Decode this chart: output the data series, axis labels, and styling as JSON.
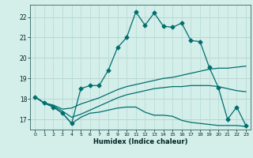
{
  "xlabel": "Humidex (Indice chaleur)",
  "bg_color": "#d4eeea",
  "grid_color_major": "#f0a0a0",
  "grid_color_minor": "#b8ddd8",
  "line_color": "#006e6e",
  "xlim": [
    -0.5,
    23.5
  ],
  "ylim": [
    16.5,
    22.6
  ],
  "yticks": [
    17,
    18,
    19,
    20,
    21,
    22
  ],
  "xticks": [
    0,
    1,
    2,
    3,
    4,
    5,
    6,
    7,
    8,
    9,
    10,
    11,
    12,
    13,
    14,
    15,
    16,
    17,
    18,
    19,
    20,
    21,
    22,
    23
  ],
  "series1_x": [
    0,
    1,
    2,
    3,
    4,
    5,
    6,
    7,
    8,
    9,
    10,
    11,
    12,
    13,
    14,
    15,
    16,
    17,
    18,
    19,
    20,
    21,
    22,
    23
  ],
  "series1_y": [
    18.1,
    17.8,
    17.6,
    17.3,
    16.8,
    18.5,
    18.65,
    18.65,
    19.4,
    20.5,
    21.0,
    22.25,
    21.6,
    22.2,
    21.55,
    21.5,
    21.7,
    20.85,
    20.8,
    19.55,
    18.55,
    17.0,
    17.6,
    16.7
  ],
  "series2_x": [
    0,
    1,
    2,
    3,
    4,
    5,
    6,
    7,
    8,
    9,
    10,
    11,
    12,
    13,
    14,
    15,
    16,
    17,
    18,
    19,
    20,
    21,
    22,
    23
  ],
  "series2_y": [
    18.1,
    17.8,
    17.6,
    17.3,
    16.8,
    17.1,
    17.3,
    17.35,
    17.45,
    17.55,
    17.6,
    17.6,
    17.35,
    17.2,
    17.2,
    17.15,
    16.95,
    16.85,
    16.8,
    16.75,
    16.7,
    16.7,
    16.7,
    16.65
  ],
  "series3_x": [
    0,
    1,
    2,
    3,
    4,
    5,
    6,
    7,
    8,
    9,
    10,
    11,
    12,
    13,
    14,
    15,
    16,
    17,
    18,
    19,
    20,
    21,
    22,
    23
  ],
  "series3_y": [
    18.1,
    17.8,
    17.7,
    17.5,
    17.55,
    17.75,
    17.9,
    18.05,
    18.25,
    18.45,
    18.6,
    18.7,
    18.8,
    18.9,
    19.0,
    19.05,
    19.15,
    19.25,
    19.35,
    19.45,
    19.5,
    19.5,
    19.55,
    19.6
  ],
  "series4_x": [
    0,
    1,
    2,
    3,
    4,
    5,
    6,
    7,
    8,
    9,
    10,
    11,
    12,
    13,
    14,
    15,
    16,
    17,
    18,
    19,
    20,
    21,
    22,
    23
  ],
  "series4_y": [
    18.1,
    17.8,
    17.65,
    17.4,
    17.1,
    17.25,
    17.45,
    17.65,
    17.85,
    18.05,
    18.2,
    18.3,
    18.4,
    18.5,
    18.55,
    18.6,
    18.6,
    18.65,
    18.65,
    18.65,
    18.6,
    18.5,
    18.4,
    18.35
  ]
}
